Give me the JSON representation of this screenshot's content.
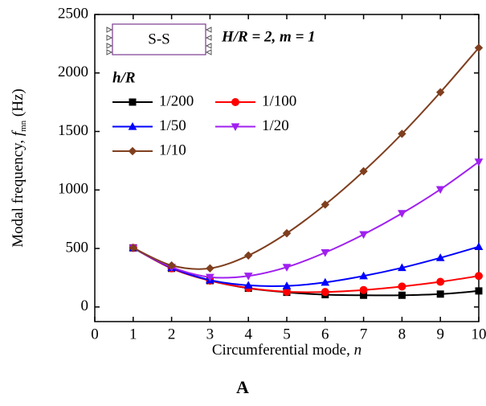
{
  "chart_data": {
    "type": "line",
    "xlabel": {
      "text": "Circumferential mode, ",
      "var": "n"
    },
    "ylabel": {
      "text": "Modal frequency, ",
      "var": "f",
      "sub": "mn",
      "unit": " (Hz)"
    },
    "boundary": "S-S",
    "annotation": "H/R = 2, m = 1",
    "legend_title": "h/R",
    "caption": "A",
    "x": [
      1,
      2,
      3,
      4,
      5,
      6,
      7,
      8,
      9,
      10
    ],
    "xlim": [
      0,
      10
    ],
    "xticks": [
      0,
      1,
      2,
      3,
      4,
      5,
      6,
      7,
      8,
      9,
      10
    ],
    "ylim": [
      -125,
      2500
    ],
    "yticks": [
      0,
      500,
      1000,
      1500,
      2000,
      2500
    ],
    "series": [
      {
        "name": "1/200",
        "color": "#000000",
        "marker": "square",
        "values": [
          505,
          330,
          225,
          160,
          125,
          105,
          100,
          100,
          110,
          137
        ]
      },
      {
        "name": "1/100",
        "color": "#ff0000",
        "marker": "circle",
        "values": [
          505,
          330,
          225,
          162,
          130,
          128,
          145,
          175,
          215,
          265
        ]
      },
      {
        "name": "1/50",
        "color": "#0000ff",
        "marker": "triangle-up",
        "values": [
          505,
          335,
          230,
          185,
          180,
          210,
          265,
          335,
          420,
          515
        ]
      },
      {
        "name": "1/20",
        "color": "#a020f0",
        "marker": "triangle-down",
        "values": [
          505,
          340,
          255,
          265,
          340,
          465,
          620,
          800,
          1005,
          1240
        ]
      },
      {
        "name": "1/10",
        "color": "#7f3f1f",
        "marker": "diamond",
        "values": [
          505,
          355,
          330,
          440,
          630,
          875,
          1160,
          1480,
          1835,
          2215
        ]
      }
    ]
  }
}
